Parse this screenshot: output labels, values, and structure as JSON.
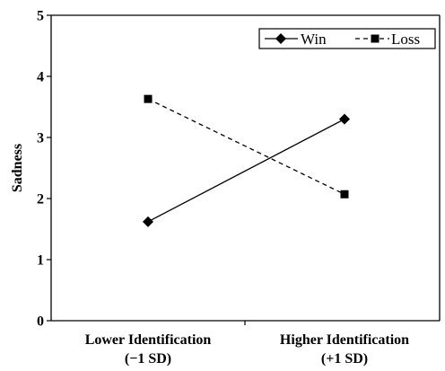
{
  "chart_data": {
    "type": "line",
    "categories": [
      [
        "Lower Identification",
        "(−1 SD)"
      ],
      [
        "Higher Identification",
        "(+1 SD)"
      ]
    ],
    "ylabel": "Sadness",
    "ylim": [
      0,
      5
    ],
    "yticks": [
      "0",
      "1",
      "2",
      "3",
      "4",
      "5"
    ],
    "grid": false,
    "legend_position": "top-right",
    "series": [
      {
        "name": "Win",
        "values": [
          1.62,
          3.3
        ],
        "marker": "diamond",
        "line_style": "solid",
        "color": "#000000"
      },
      {
        "name": "Loss",
        "values": [
          3.63,
          2.07
        ],
        "marker": "square",
        "line_style": "dashed",
        "color": "#000000"
      }
    ]
  }
}
